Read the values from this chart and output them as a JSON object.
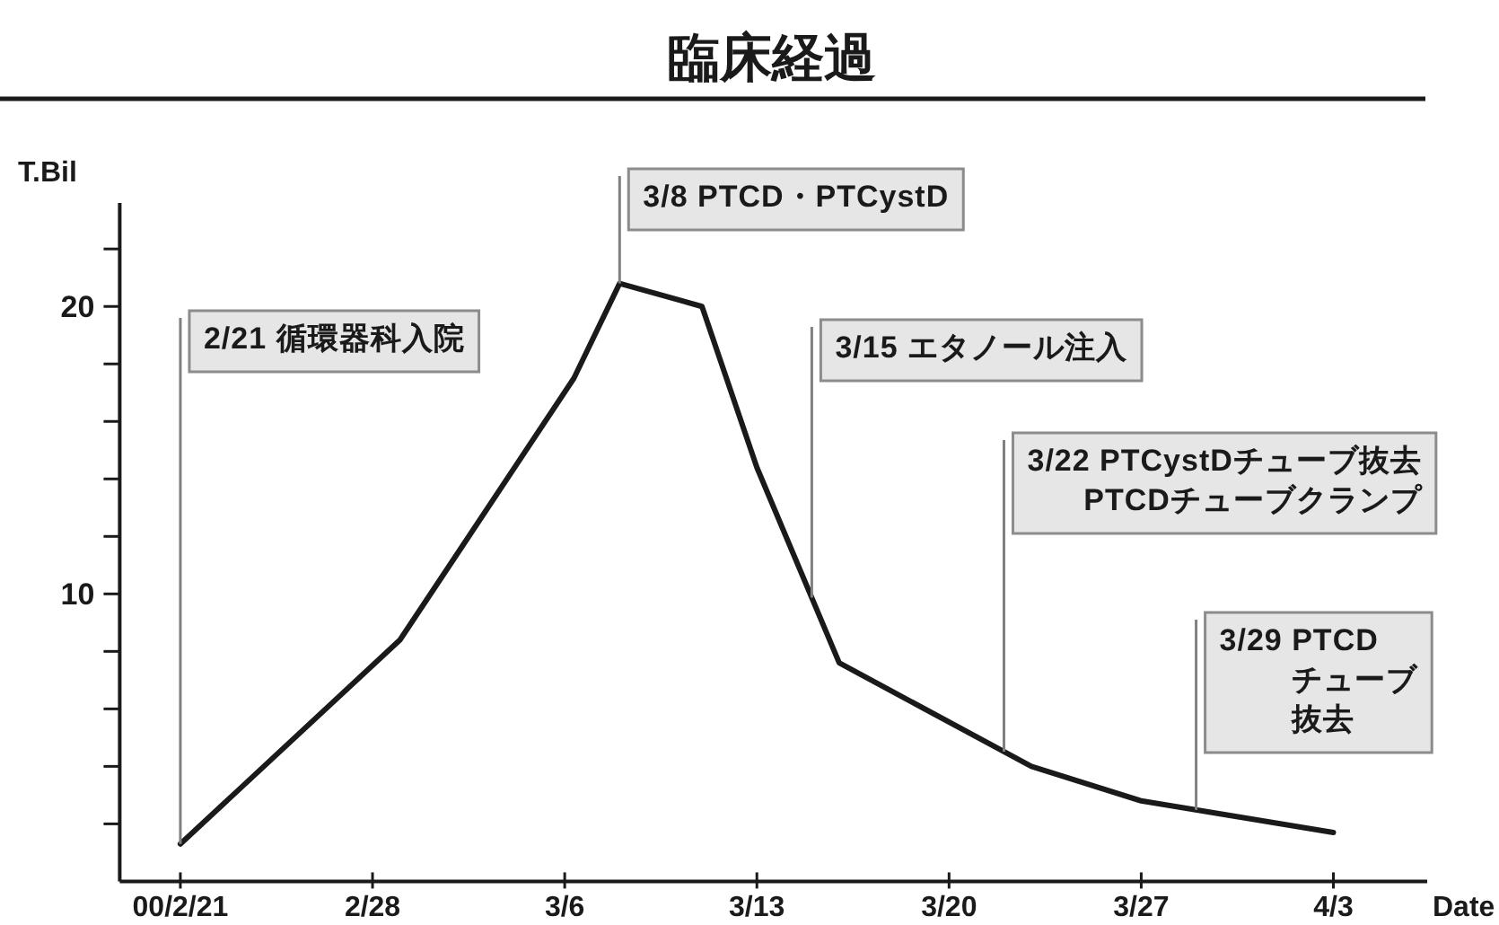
{
  "chart_data": {
    "type": "line",
    "title": "臨床経過",
    "xlabel": "Date",
    "ylabel": "T.Bil",
    "x": [
      "--02-21",
      "--02-29",
      "--03-06T08:00",
      "--03-08",
      "--03-11",
      "--03-13",
      "--03-16",
      "--03-23",
      "--03-27",
      "--04-03"
    ],
    "series": [
      {
        "color": "#1a1a1a",
        "values": [
          1.3,
          8.4,
          17.5,
          20.8,
          20.0,
          14.4,
          7.6,
          4.0,
          2.8,
          1.7
        ]
      }
    ],
    "xlim": [
      "--02-18T19:00",
      "--04-06T10:00"
    ],
    "xticks": [
      {
        "value": "--02-21",
        "label": "00/2/21"
      },
      {
        "value": "--02-28",
        "label": "2/28"
      },
      {
        "value": "--03-06",
        "label": "3/6"
      },
      {
        "value": "--03-13",
        "label": "3/13"
      },
      {
        "value": "--03-20",
        "label": "3/20"
      },
      {
        "value": "--03-27",
        "label": "3/27"
      },
      {
        "value": "--04-03",
        "label": "4/3"
      }
    ],
    "ylim": [
      0,
      23.6
    ],
    "yticks": [
      {
        "value": 2,
        "label": null
      },
      {
        "value": 4,
        "label": null
      },
      {
        "value": 6,
        "label": null
      },
      {
        "value": 8,
        "label": null
      },
      10,
      {
        "value": 12,
        "label": null
      },
      {
        "value": 14,
        "label": null
      },
      {
        "value": 16,
        "label": null
      },
      {
        "value": 18,
        "label": null
      },
      20,
      {
        "value": 22,
        "label": null
      }
    ],
    "marker": "none",
    "line_style": "solid",
    "ref_lines": [
      {
        "axis": "x",
        "value": "--02-21",
        "label": "2/21 循環器科入院",
        "color": "#808080"
      },
      {
        "axis": "x",
        "value": "--03-08",
        "label": "3/8 PTCD・PTCystD",
        "color": "#808080"
      },
      {
        "axis": "x",
        "value": "--03-15",
        "label": "3/15 エタノール注入",
        "color": "#808080"
      },
      {
        "axis": "x",
        "value": "--03-22",
        "label": "3/22 PTCystDチューブ抜去\nPTCDチューブクランプ",
        "color": "#808080"
      },
      {
        "axis": "x",
        "value": "--03-29",
        "label": "3/29 PTCD\nチューブ抜去",
        "color": "#808080"
      }
    ]
  }
}
